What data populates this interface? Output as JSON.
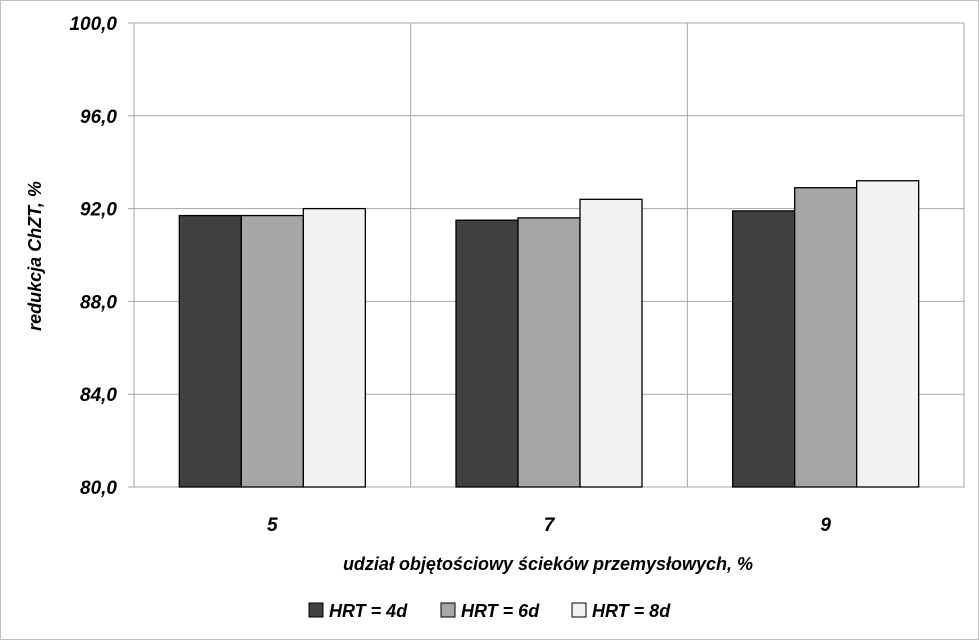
{
  "chart_data": {
    "type": "bar",
    "categories": [
      "5",
      "7",
      "9"
    ],
    "series": [
      {
        "name": "HRT = 4d",
        "values": [
          91.7,
          91.5,
          91.9
        ],
        "color": "#404040"
      },
      {
        "name": "HRT = 6d",
        "values": [
          91.7,
          91.6,
          92.9
        ],
        "color": "#a6a6a6"
      },
      {
        "name": "HRT = 8d",
        "values": [
          92.0,
          92.4,
          93.2
        ],
        "color": "#f2f2f2"
      }
    ],
    "title": "",
    "xlabel": "udział objętościowy ścieków przemysłowych, %",
    "ylabel": "redukcja ChZT, %",
    "ylim": [
      80,
      100
    ],
    "yticks": [
      "80,0",
      "84,0",
      "88,0",
      "92,0",
      "96,0",
      "100,0"
    ],
    "grid": true,
    "legend": "bottom"
  }
}
